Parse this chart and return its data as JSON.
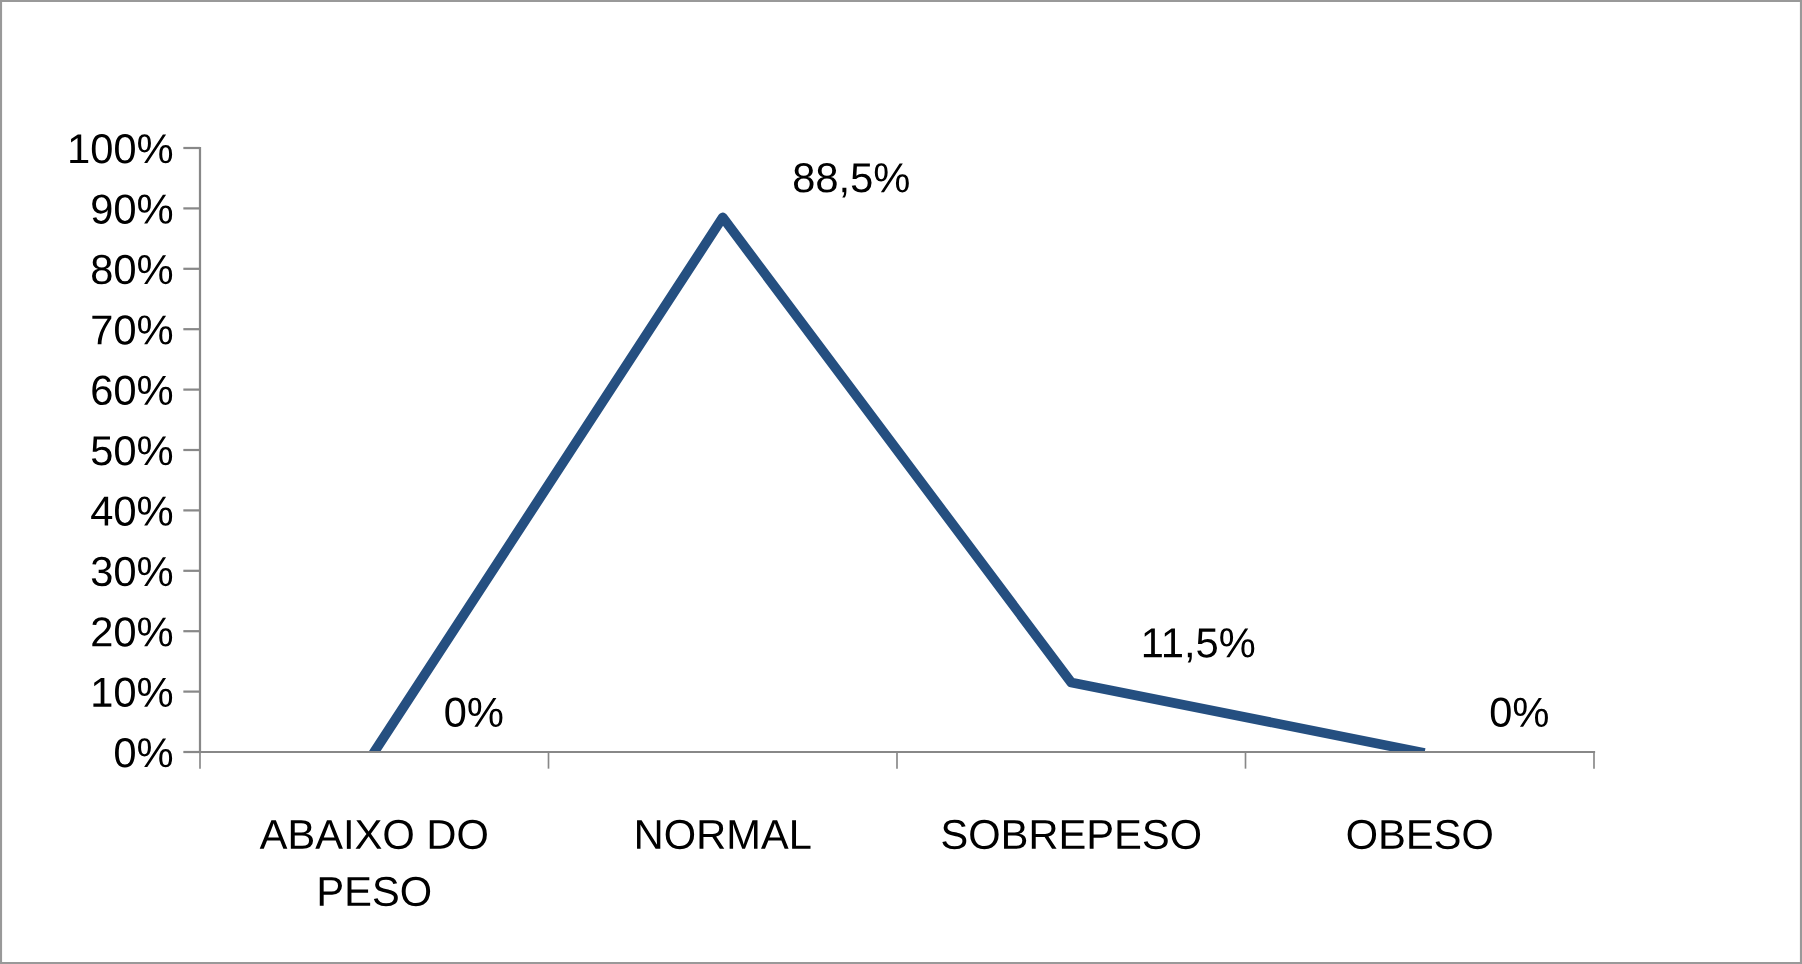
{
  "chart_data": {
    "type": "line",
    "categories": [
      "ABAIXO DO\nPESO",
      "NORMAL",
      "SOBREPESO",
      "OBESO"
    ],
    "series": [
      {
        "color": "#254f80",
        "values": [
          0,
          88.5,
          11.5,
          0
        ],
        "value_labels": [
          "0%",
          "88,5%",
          "11,5%",
          "0%"
        ]
      }
    ],
    "ylim": [
      0,
      100
    ],
    "yticks": [
      {
        "value": 0,
        "label": "0%"
      },
      {
        "value": 10,
        "label": "10%"
      },
      {
        "value": 20,
        "label": "20%"
      },
      {
        "value": 30,
        "label": "30%"
      },
      {
        "value": 40,
        "label": "40%"
      },
      {
        "value": 50,
        "label": "50%"
      },
      {
        "value": 60,
        "label": "60%"
      },
      {
        "value": 70,
        "label": "70%"
      },
      {
        "value": 80,
        "label": "80%"
      },
      {
        "value": 90,
        "label": "90%"
      },
      {
        "value": 100,
        "label": "100%"
      }
    ],
    "grid": false,
    "legend": false,
    "marker": "none",
    "line_style": "solid"
  }
}
